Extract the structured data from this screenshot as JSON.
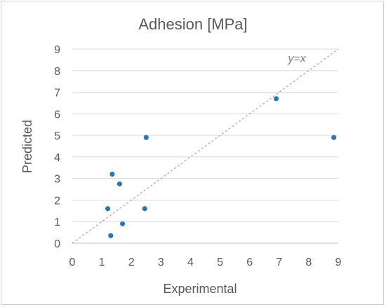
{
  "chart_data": {
    "type": "scatter",
    "title": "Adhesion [MPa]",
    "xlabel": "Experimental",
    "ylabel": "Predicted",
    "xlim": [
      0,
      9
    ],
    "ylim": [
      0,
      9
    ],
    "xticks": [
      0,
      1,
      2,
      3,
      4,
      5,
      6,
      7,
      8,
      9
    ],
    "yticks": [
      0,
      1,
      2,
      3,
      4,
      5,
      6,
      7,
      8,
      9
    ],
    "grid": "horizontal",
    "reference_line": {
      "label": "y=x",
      "from": [
        0,
        0
      ],
      "to": [
        9,
        9
      ]
    },
    "marker_color": "#2E75B6",
    "points": [
      {
        "x": 1.2,
        "y": 1.6
      },
      {
        "x": 1.3,
        "y": 0.35
      },
      {
        "x": 1.35,
        "y": 3.2
      },
      {
        "x": 1.6,
        "y": 2.75
      },
      {
        "x": 1.7,
        "y": 0.9
      },
      {
        "x": 2.45,
        "y": 1.6
      },
      {
        "x": 2.5,
        "y": 4.9
      },
      {
        "x": 6.9,
        "y": 6.7
      },
      {
        "x": 8.85,
        "y": 4.9
      }
    ]
  }
}
